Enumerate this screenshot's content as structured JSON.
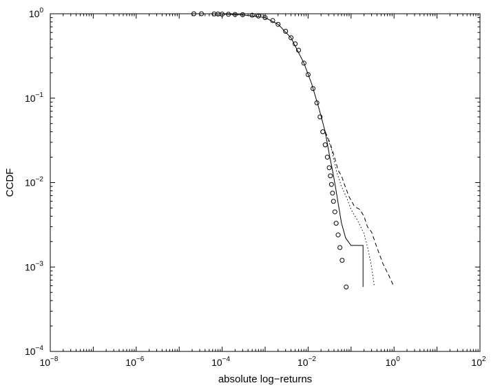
{
  "chart_data": {
    "type": "line",
    "title": "",
    "xlabel": "absolute log−returns",
    "ylabel": "CCDF",
    "xscale": "log",
    "yscale": "log",
    "xlim": [
      1e-08,
      100
    ],
    "ylim": [
      0.0001,
      1
    ],
    "grid": false,
    "legend": "none",
    "x_ticks": [
      {
        "base": "10",
        "exp": "−8",
        "value": 1e-08
      },
      {
        "base": "10",
        "exp": "−6",
        "value": 1e-06
      },
      {
        "base": "10",
        "exp": "−4",
        "value": 0.0001
      },
      {
        "base": "10",
        "exp": "−2",
        "value": 0.01
      },
      {
        "base": "10",
        "exp": "0",
        "value": 1
      },
      {
        "base": "10",
        "exp": "2",
        "value": 100
      }
    ],
    "y_ticks": [
      {
        "base": "10",
        "exp": "−4",
        "value": 0.0001
      },
      {
        "base": "10",
        "exp": "−3",
        "value": 0.001
      },
      {
        "base": "10",
        "exp": "−2",
        "value": 0.01
      },
      {
        "base": "10",
        "exp": "−1",
        "value": 0.1
      },
      {
        "base": "10",
        "exp": "0",
        "value": 1
      }
    ],
    "series": [
      {
        "style": "markers-circle",
        "color": "#000000",
        "x": [
          2.2e-05,
          3.3e-05,
          6.5e-05,
          8e-05,
          0.0001,
          0.00014,
          0.0002,
          0.0003,
          0.0005,
          0.0007,
          0.001,
          0.0015,
          0.002,
          0.003,
          0.004,
          0.005,
          0.006,
          0.008,
          0.01,
          0.013,
          0.016,
          0.019,
          0.022,
          0.025,
          0.028,
          0.031,
          0.033,
          0.035,
          0.037,
          0.039,
          0.042,
          0.045,
          0.05,
          0.055,
          0.062,
          0.077
        ],
        "y": [
          1.0,
          1.0,
          0.995,
          0.993,
          0.99,
          0.985,
          0.98,
          0.975,
          0.96,
          0.94,
          0.9,
          0.83,
          0.75,
          0.62,
          0.52,
          0.44,
          0.37,
          0.26,
          0.19,
          0.13,
          0.088,
          0.06,
          0.04,
          0.028,
          0.02,
          0.015,
          0.012,
          0.0095,
          0.0075,
          0.006,
          0.0045,
          0.0033,
          0.0024,
          0.0017,
          0.0012,
          0.00058
        ]
      },
      {
        "style": "solid",
        "color": "#000000",
        "x": [
          0.0001,
          0.0003,
          0.001,
          0.002,
          0.004,
          0.008,
          0.012,
          0.018,
          0.025,
          0.032,
          0.038,
          0.044,
          0.05,
          0.06,
          0.075,
          0.1,
          0.12,
          0.155,
          0.19,
          0.19
        ],
        "y": [
          0.99,
          0.97,
          0.9,
          0.75,
          0.52,
          0.26,
          0.15,
          0.075,
          0.04,
          0.02,
          0.013,
          0.0085,
          0.0057,
          0.0033,
          0.0022,
          0.0018,
          0.0018,
          0.0018,
          0.0018,
          0.00058
        ]
      },
      {
        "style": "dotted",
        "color": "#000000",
        "x": [
          0.025,
          0.035,
          0.045,
          0.06,
          0.08,
          0.1,
          0.14,
          0.2,
          0.25,
          0.3,
          0.35
        ],
        "y": [
          0.04,
          0.025,
          0.014,
          0.009,
          0.0065,
          0.0048,
          0.0036,
          0.0025,
          0.0016,
          0.001,
          0.00058
        ]
      },
      {
        "style": "dashed",
        "color": "#000000",
        "x": [
          0.025,
          0.032,
          0.04,
          0.05,
          0.06,
          0.07,
          0.09,
          0.12,
          0.16,
          0.2,
          0.24,
          0.3,
          0.4,
          0.55,
          0.75,
          1.0
        ],
        "y": [
          0.04,
          0.03,
          0.021,
          0.014,
          0.012,
          0.0095,
          0.0068,
          0.0052,
          0.0048,
          0.004,
          0.003,
          0.0026,
          0.0017,
          0.0011,
          0.0008,
          0.00058
        ]
      }
    ]
  }
}
